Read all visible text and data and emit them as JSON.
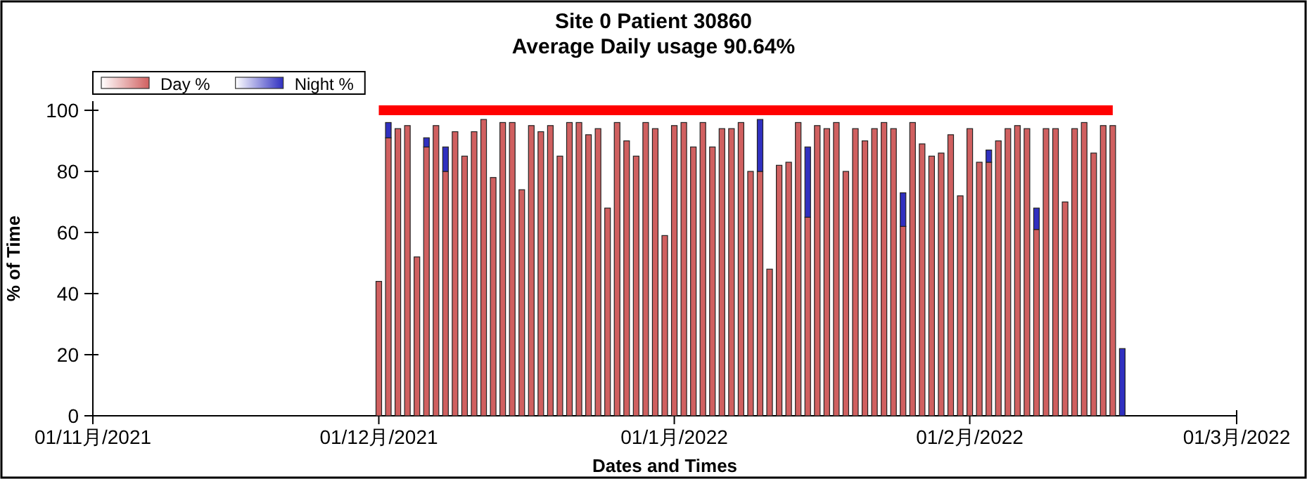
{
  "chart_data": {
    "type": "bar",
    "title": "Site 0 Patient 30860",
    "subtitle": "Average Daily usage 90.64%",
    "xlabel": "Dates and Times",
    "ylabel": "% of Time",
    "stacked": true,
    "legend": "top left",
    "xlim": [
      "2021-11-01",
      "2022-03-01"
    ],
    "xticks": [
      {
        "value": "2021-11-01",
        "label": "01/11月/2021"
      },
      {
        "value": "2021-12-01",
        "label": "01/12月/2021"
      },
      {
        "value": "2022-01-01",
        "label": "01/1月/2022"
      },
      {
        "value": "2022-02-01",
        "label": "01/2月/2022"
      },
      {
        "value": "2022-03-01",
        "label": "01/3月/2022"
      }
    ],
    "ylim": [
      0,
      103
    ],
    "yticks": [
      0,
      20,
      40,
      60,
      80,
      100
    ],
    "x": [
      "2021-12-01",
      "2021-12-02",
      "2021-12-03",
      "2021-12-04",
      "2021-12-05",
      "2021-12-06",
      "2021-12-07",
      "2021-12-08",
      "2021-12-09",
      "2021-12-10",
      "2021-12-11",
      "2021-12-12",
      "2021-12-13",
      "2021-12-14",
      "2021-12-15",
      "2021-12-16",
      "2021-12-17",
      "2021-12-18",
      "2021-12-19",
      "2021-12-20",
      "2021-12-21",
      "2021-12-22",
      "2021-12-23",
      "2021-12-24",
      "2021-12-25",
      "2021-12-26",
      "2021-12-27",
      "2021-12-28",
      "2021-12-29",
      "2021-12-30",
      "2021-12-31",
      "2022-01-01",
      "2022-01-02",
      "2022-01-03",
      "2022-01-04",
      "2022-01-05",
      "2022-01-06",
      "2022-01-07",
      "2022-01-08",
      "2022-01-09",
      "2022-01-10",
      "2022-01-11",
      "2022-01-12",
      "2022-01-13",
      "2022-01-14",
      "2022-01-15",
      "2022-01-16",
      "2022-01-17",
      "2022-01-18",
      "2022-01-19",
      "2022-01-20",
      "2022-01-21",
      "2022-01-22",
      "2022-01-23",
      "2022-01-24",
      "2022-01-25",
      "2022-01-26",
      "2022-01-27",
      "2022-01-28",
      "2022-01-29",
      "2022-01-30",
      "2022-01-31",
      "2022-02-01",
      "2022-02-02",
      "2022-02-03",
      "2022-02-04",
      "2022-02-05",
      "2022-02-06",
      "2022-02-07",
      "2022-02-08",
      "2022-02-09",
      "2022-02-10",
      "2022-02-11",
      "2022-02-12",
      "2022-02-13",
      "2022-02-14",
      "2022-02-15",
      "2022-02-16",
      "2022-02-17"
    ],
    "series": [
      {
        "name": "Day %",
        "color": "#d06060",
        "values": [
          44,
          91,
          94,
          95,
          52,
          88,
          95,
          80,
          93,
          85,
          93,
          97,
          78,
          96,
          96,
          74,
          95,
          93,
          95,
          85,
          96,
          96,
          92,
          94,
          68,
          96,
          90,
          85,
          96,
          94,
          59,
          95,
          96,
          88,
          96,
          88,
          94,
          94,
          96,
          80,
          80,
          48,
          82,
          83,
          96,
          65,
          95,
          94,
          96,
          80,
          94,
          90,
          94,
          96,
          94,
          62,
          96,
          89,
          85,
          86,
          92,
          72,
          94,
          83,
          83,
          90,
          94,
          95,
          94,
          61,
          94,
          94,
          70,
          94,
          96,
          86,
          95,
          95,
          0
        ]
      },
      {
        "name": "Night %",
        "color": "#3030c0",
        "values": [
          0,
          5,
          0,
          0,
          0,
          3,
          0,
          8,
          0,
          0,
          0,
          0,
          0,
          0,
          0,
          0,
          0,
          0,
          0,
          0,
          0,
          0,
          0,
          0,
          0,
          0,
          0,
          0,
          0,
          0,
          0,
          0,
          0,
          0,
          0,
          0,
          0,
          0,
          0,
          0,
          17,
          0,
          0,
          0,
          0,
          23,
          0,
          0,
          0,
          0,
          0,
          0,
          0,
          0,
          0,
          11,
          0,
          0,
          0,
          0,
          0,
          0,
          0,
          0,
          4,
          0,
          0,
          0,
          0,
          7,
          0,
          0,
          0,
          0,
          0,
          0,
          0,
          0,
          22
        ]
      },
      {
        "type": "line",
        "color": "#ff0000",
        "values": [
          100,
          100,
          100,
          100,
          100,
          100,
          100,
          100,
          100,
          100,
          100,
          100,
          100,
          100,
          100,
          100,
          100,
          100,
          100,
          100,
          100,
          100,
          100,
          100,
          100,
          100,
          100,
          100,
          100,
          100,
          100,
          100,
          100,
          100,
          100,
          100,
          100,
          100,
          100,
          100,
          100,
          100,
          100,
          100,
          100,
          100,
          100,
          100,
          100,
          100,
          100,
          100,
          100,
          100,
          100,
          100,
          100,
          100,
          100,
          100,
          100,
          100,
          100,
          100,
          100,
          100,
          100,
          100,
          100,
          100,
          100,
          100,
          100,
          100,
          100,
          100,
          100,
          100,
          null
        ]
      }
    ]
  }
}
